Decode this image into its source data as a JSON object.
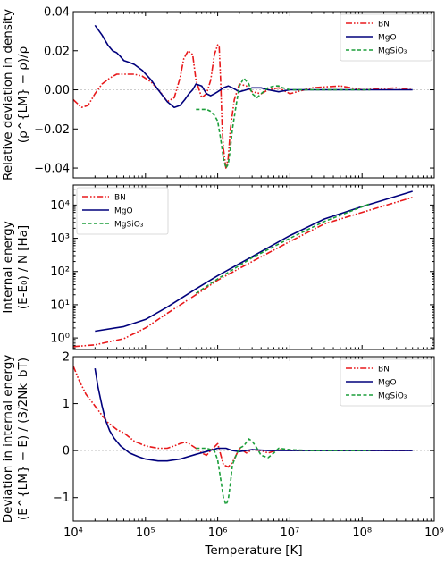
{
  "chart_data": [
    {
      "type": "line",
      "title": "",
      "xlabel": "",
      "ylabel_lines": [
        "Relative deviation in density",
        "(ρ^{LM} − ρ)/ρ"
      ],
      "xscale": "log",
      "xlim": [
        10000,
        1000000000
      ],
      "ylim": [
        -0.045,
        0.04
      ],
      "yticks": [
        0.04,
        0.02,
        0.0,
        -0.02,
        -0.04
      ],
      "ytick_labels": [
        "0.04",
        "0.02",
        "0.00",
        "−0.02",
        "−0.04"
      ],
      "zero_line": true,
      "legend": {
        "placement": "top-right"
      },
      "series": [
        {
          "name": "BN",
          "color": "#e8191b",
          "dash": "dashdotdot",
          "x": [
            10000,
            13000,
            16000,
            20000,
            25000,
            32000,
            40000,
            55000,
            70000,
            90000,
            120000,
            160000,
            200000,
            250000,
            300000,
            340000,
            390000,
            450000,
            500000,
            600000,
            700000,
            800000,
            900000,
            1000000,
            1050000,
            1100000,
            1150000,
            1200000,
            1300000,
            1400000,
            1500000,
            1700000,
            2000000,
            2500000,
            3000000,
            4000000,
            5000000,
            7000000,
            10000000,
            20000000,
            50000000,
            100000000,
            300000000,
            500000000
          ],
          "y": [
            -0.005,
            -0.009,
            -0.008,
            -0.002,
            0.003,
            0.006,
            0.008,
            0.008,
            0.008,
            0.007,
            0.004,
            -0.001,
            -0.006,
            -0.004,
            0.006,
            0.016,
            0.02,
            0.018,
            0.005,
            -0.004,
            -0.002,
            0.005,
            0.018,
            0.023,
            0.022,
            0.005,
            -0.018,
            -0.03,
            -0.04,
            -0.035,
            -0.02,
            -0.005,
            0.003,
            0.002,
            -0.001,
            -0.002,
            0.0,
            0.001,
            -0.002,
            0.001,
            0.002,
            0.0,
            0.001,
            0.0
          ]
        },
        {
          "name": "MgO",
          "color": "#00007c",
          "dash": "solid",
          "x": [
            20000,
            25000,
            30000,
            35000,
            40000,
            45000,
            50000,
            60000,
            70000,
            90000,
            120000,
            150000,
            200000,
            250000,
            300000,
            350000,
            400000,
            450000,
            500000,
            600000,
            700000,
            800000,
            900000,
            1000000,
            1200000,
            1400000,
            1600000,
            2000000,
            2500000,
            3000000,
            4000000,
            5000000,
            7000000,
            10000000,
            20000000,
            50000000,
            100000000,
            200000000,
            500000000
          ],
          "y": [
            0.033,
            0.028,
            0.023,
            0.02,
            0.019,
            0.017,
            0.015,
            0.014,
            0.013,
            0.01,
            0.005,
            0.0,
            -0.006,
            -0.009,
            -0.008,
            -0.005,
            -0.002,
            0.0,
            0.003,
            0.002,
            -0.002,
            -0.003,
            -0.002,
            -0.001,
            0.001,
            0.002,
            0.001,
            -0.001,
            0.0,
            0.001,
            0.001,
            0.0,
            -0.001,
            0.0,
            0.0,
            0.0,
            0.0,
            0.0,
            0.0
          ]
        },
        {
          "name": "MgSiO₃",
          "color": "#1b9e3a",
          "dash": "dashed",
          "x": [
            500000,
            600000,
            700000,
            800000,
            900000,
            1000000,
            1100000,
            1200000,
            1300000,
            1400000,
            1500000,
            1600000,
            1800000,
            2000000,
            2300000,
            2700000,
            3000000,
            3500000,
            4000000,
            5000000,
            6000000,
            7000000,
            8000000,
            10000000,
            15000000,
            20000000,
            30000000,
            50000000,
            70000000,
            100000000,
            130000000
          ],
          "y": [
            -0.01,
            -0.01,
            -0.01,
            -0.011,
            -0.013,
            -0.016,
            -0.025,
            -0.035,
            -0.04,
            -0.038,
            -0.03,
            -0.02,
            -0.008,
            0.002,
            0.006,
            0.003,
            -0.002,
            -0.004,
            -0.002,
            0.001,
            0.002,
            0.002,
            0.001,
            0.0,
            0.0,
            0.0,
            0.0,
            0.0,
            0.0,
            0.0,
            0.0
          ]
        }
      ]
    },
    {
      "type": "line",
      "title": "",
      "xlabel": "",
      "ylabel_lines": [
        "Internal energy",
        "(E-E₀) / N [Ha]"
      ],
      "xscale": "log",
      "yscale": "log",
      "xlim": [
        10000,
        1000000000
      ],
      "ylim": [
        0.45,
        40000
      ],
      "yticks": [
        1,
        10,
        100,
        1000,
        10000
      ],
      "ytick_labels": [
        "10⁰",
        "10¹",
        "10²",
        "10³",
        "10⁴"
      ],
      "legend": {
        "placement": "top-left"
      },
      "series": [
        {
          "name": "BN",
          "color": "#e8191b",
          "dash": "dashdotdot",
          "x": [
            10000,
            20000,
            50000,
            100000,
            200000,
            500000,
            1000000,
            3000000,
            10000000,
            30000000,
            100000000,
            500000000
          ],
          "y": [
            0.55,
            0.62,
            0.95,
            2.0,
            5.5,
            20,
            55,
            200,
            800,
            2700,
            6000,
            17000
          ]
        },
        {
          "name": "MgO",
          "color": "#00007c",
          "dash": "solid",
          "x": [
            20000,
            50000,
            100000,
            200000,
            500000,
            1000000,
            3000000,
            10000000,
            30000000,
            100000000,
            500000000
          ],
          "y": [
            1.6,
            2.2,
            3.6,
            8.5,
            30,
            75,
            280,
            1200,
            3800,
            9000,
            26000
          ]
        },
        {
          "name": "MgSiO₃",
          "color": "#1b9e3a",
          "dash": "dashed",
          "x": [
            500000,
            1000000,
            3000000,
            10000000,
            30000000,
            130000000
          ],
          "y": [
            22,
            60,
            260,
            1000,
            3200,
            11000
          ]
        }
      ]
    },
    {
      "type": "line",
      "title": "",
      "xlabel": "Temperature [K]",
      "ylabel_lines": [
        "Deviation in internal energy",
        "(E^{LM} − E) / (3/2Nk_bT)"
      ],
      "xscale": "log",
      "xlim": [
        10000,
        1000000000
      ],
      "ylim": [
        -1.5,
        2.0
      ],
      "yticks": [
        2,
        1,
        0,
        -1
      ],
      "ytick_labels": [
        "2",
        "1",
        "0",
        "−1"
      ],
      "xticks": [
        10000,
        100000,
        1000000,
        10000000,
        100000000,
        1000000000
      ],
      "xtick_labels": [
        "10⁴",
        "10⁵",
        "10⁶",
        "10⁷",
        "10⁸",
        "10⁹"
      ],
      "zero_line": true,
      "legend": {
        "placement": "top-right"
      },
      "series": [
        {
          "name": "BN",
          "color": "#e8191b",
          "dash": "dashdotdot",
          "x": [
            10000,
            12000,
            15000,
            20000,
            25000,
            30000,
            40000,
            50000,
            70000,
            100000,
            150000,
            200000,
            250000,
            300000,
            350000,
            400000,
            500000,
            600000,
            700000,
            800000,
            1000000,
            1200000,
            1400000,
            1600000,
            1800000,
            2000000,
            2500000,
            3000000,
            4000000,
            5000000,
            7000000,
            10000000,
            20000000,
            50000000,
            100000000,
            500000000
          ],
          "y": [
            1.8,
            1.5,
            1.2,
            0.95,
            0.75,
            0.6,
            0.45,
            0.38,
            0.2,
            0.1,
            0.05,
            0.05,
            0.1,
            0.15,
            0.18,
            0.15,
            0.05,
            -0.05,
            -0.1,
            0.0,
            0.15,
            -0.3,
            -0.35,
            -0.25,
            -0.1,
            0.05,
            -0.05,
            0.02,
            0.0,
            -0.05,
            0.02,
            0.0,
            0.0,
            0.0,
            0.0,
            0.0
          ]
        },
        {
          "name": "MgO",
          "color": "#00007c",
          "dash": "solid",
          "x": [
            20000,
            22000,
            25000,
            28000,
            32000,
            37000,
            45000,
            60000,
            80000,
            100000,
            150000,
            200000,
            300000,
            500000,
            700000,
            1000000,
            1300000,
            1600000,
            2000000,
            3000000,
            5000000,
            10000000,
            30000000,
            100000000,
            500000000
          ],
          "y": [
            1.75,
            1.35,
            0.95,
            0.65,
            0.42,
            0.26,
            0.1,
            -0.05,
            -0.13,
            -0.18,
            -0.22,
            -0.22,
            -0.18,
            -0.08,
            -0.02,
            0.05,
            0.05,
            0.0,
            -0.02,
            0.02,
            0.0,
            0.0,
            0.0,
            0.0,
            0.0
          ]
        },
        {
          "name": "MgSiO₃",
          "color": "#1b9e3a",
          "dash": "dashed",
          "x": [
            500000,
            700000,
            900000,
            1000000,
            1100000,
            1200000,
            1300000,
            1400000,
            1500000,
            1600000,
            1800000,
            2000000,
            2300000,
            2700000,
            3000000,
            3500000,
            4000000,
            5000000,
            6000000,
            7000000,
            10000000,
            20000000,
            50000000,
            130000000
          ],
          "y": [
            0.05,
            0.05,
            0.0,
            -0.2,
            -0.6,
            -1.0,
            -1.15,
            -1.05,
            -0.7,
            -0.3,
            -0.1,
            0.05,
            0.1,
            0.25,
            0.2,
            0.05,
            -0.1,
            -0.15,
            -0.05,
            0.05,
            0.02,
            0.0,
            0.0,
            0.0
          ]
        }
      ]
    }
  ]
}
